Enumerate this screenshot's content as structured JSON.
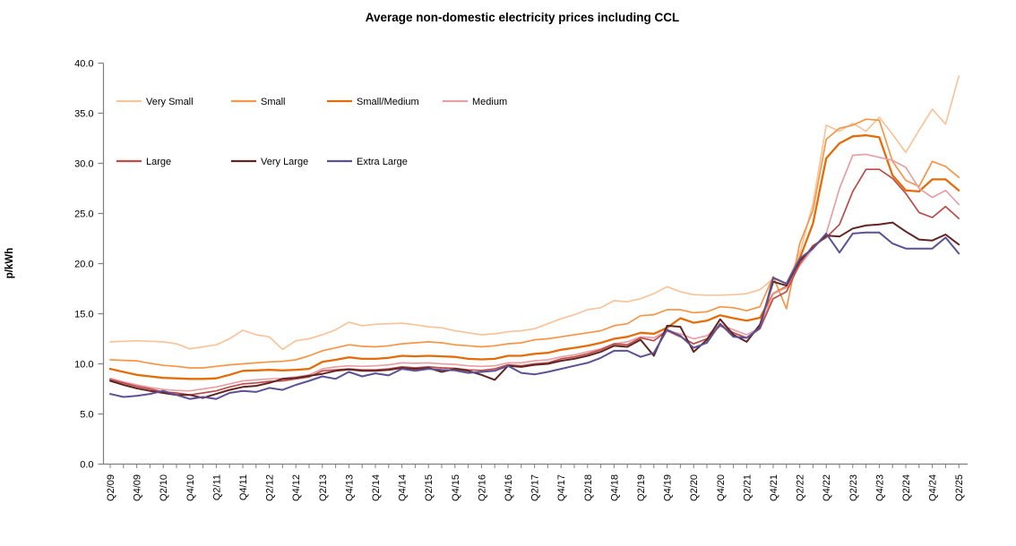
{
  "chart": {
    "title": "Average non-domestic electricity prices including CCL",
    "ylabel": "p/kWh"
  },
  "chart_data": {
    "type": "line",
    "title": "Average non-domestic electricity prices including CCL",
    "xlabel": "",
    "ylabel": "p/kWh",
    "ylim": [
      0,
      40
    ],
    "ytick_step": 5,
    "ytick_format_decimals": 1,
    "x_label_every": 2,
    "grid": false,
    "legend_position": "inside-top-left",
    "legend_rows": [
      [
        "Very Small",
        "Small",
        "Small/Medium",
        "Medium"
      ],
      [
        "Large",
        "Very Large",
        "Extra Large"
      ]
    ],
    "categories": [
      "Q2/09",
      "Q3/09",
      "Q4/09",
      "Q1/10",
      "Q2/10",
      "Q3/10",
      "Q4/10",
      "Q1/11",
      "Q2/11",
      "Q3/11",
      "Q4/11",
      "Q1/12",
      "Q2/12",
      "Q3/12",
      "Q4/12",
      "Q1/13",
      "Q2/13",
      "Q3/13",
      "Q4/13",
      "Q1/14",
      "Q2/14",
      "Q3/14",
      "Q4/14",
      "Q1/15",
      "Q2/15",
      "Q3/15",
      "Q4/15",
      "Q1/16",
      "Q2/16",
      "Q3/16",
      "Q4/16",
      "Q1/17",
      "Q2/17",
      "Q3/17",
      "Q4/17",
      "Q1/18",
      "Q2/18",
      "Q3/18",
      "Q4/18",
      "Q1/19",
      "Q2/19",
      "Q3/19",
      "Q4/19",
      "Q1/20",
      "Q2/20",
      "Q3/20",
      "Q4/20",
      "Q1/21",
      "Q2/21",
      "Q3/21",
      "Q4/21",
      "Q1/22",
      "Q2/22",
      "Q3/22",
      "Q4/22",
      "Q1/23",
      "Q2/23",
      "Q3/23",
      "Q4/23",
      "Q1/24",
      "Q2/24",
      "Q3/24",
      "Q4/24",
      "Q1/25",
      "Q2/25"
    ],
    "series": [
      {
        "name": "Very Small",
        "color": "#F9C499",
        "stroke_width": 1.7,
        "values": [
          12.2,
          12.25,
          12.3,
          12.25,
          12.2,
          12.0,
          11.5,
          11.7,
          11.9,
          12.5,
          13.35,
          12.9,
          12.7,
          11.45,
          12.3,
          12.5,
          12.9,
          13.4,
          14.15,
          13.8,
          13.95,
          14.0,
          14.05,
          13.9,
          13.7,
          13.6,
          13.3,
          13.1,
          12.9,
          13.0,
          13.2,
          13.3,
          13.5,
          14.0,
          14.5,
          14.9,
          15.4,
          15.6,
          16.3,
          16.2,
          16.5,
          17.0,
          17.7,
          17.2,
          16.9,
          16.85,
          16.85,
          16.9,
          17.0,
          17.4,
          18.5,
          18.0,
          21.0,
          26.0,
          33.8,
          33.2,
          34.0,
          33.2,
          34.6,
          32.9,
          31.1,
          33.3,
          35.4,
          33.9,
          38.7
        ]
      },
      {
        "name": "Small",
        "color": "#F79646",
        "stroke_width": 1.7,
        "values": [
          10.4,
          10.35,
          10.3,
          10.05,
          9.85,
          9.75,
          9.6,
          9.6,
          9.75,
          9.9,
          10.0,
          10.1,
          10.2,
          10.25,
          10.4,
          10.8,
          11.3,
          11.6,
          11.9,
          11.75,
          11.7,
          11.8,
          12.0,
          12.1,
          12.2,
          12.1,
          11.9,
          11.8,
          11.7,
          11.8,
          12.0,
          12.1,
          12.4,
          12.5,
          12.7,
          12.9,
          13.1,
          13.3,
          13.8,
          14.0,
          14.8,
          14.9,
          15.4,
          15.4,
          15.1,
          15.2,
          15.7,
          15.6,
          15.3,
          15.7,
          18.7,
          15.5,
          22.0,
          25.3,
          32.4,
          33.5,
          33.8,
          34.4,
          34.3,
          30.2,
          28.3,
          27.7,
          30.2,
          29.7,
          28.6
        ]
      },
      {
        "name": "Small/Medium",
        "color": "#E46C0A",
        "stroke_width": 2.3,
        "values": [
          9.5,
          9.2,
          8.9,
          8.75,
          8.6,
          8.55,
          8.5,
          8.5,
          8.55,
          8.9,
          9.3,
          9.35,
          9.4,
          9.35,
          9.4,
          9.5,
          10.2,
          10.4,
          10.65,
          10.5,
          10.5,
          10.6,
          10.8,
          10.75,
          10.8,
          10.75,
          10.7,
          10.5,
          10.45,
          10.5,
          10.8,
          10.8,
          11.0,
          11.1,
          11.4,
          11.6,
          11.8,
          12.1,
          12.5,
          12.7,
          13.1,
          13.0,
          13.6,
          14.55,
          14.1,
          14.3,
          14.85,
          14.55,
          14.3,
          14.6,
          17.0,
          17.7,
          20.5,
          24.0,
          30.5,
          32.0,
          32.7,
          32.8,
          32.6,
          28.8,
          27.3,
          27.2,
          28.4,
          28.4,
          27.3
        ]
      },
      {
        "name": "Medium",
        "color": "#E6A0A6",
        "stroke_width": 1.7,
        "values": [
          8.55,
          8.2,
          7.9,
          7.65,
          7.45,
          7.35,
          7.3,
          7.5,
          7.7,
          8.0,
          8.3,
          8.4,
          8.5,
          8.55,
          8.7,
          8.9,
          9.5,
          9.7,
          9.8,
          9.75,
          9.8,
          9.9,
          10.1,
          10.05,
          10.1,
          10.0,
          9.95,
          9.8,
          9.75,
          9.8,
          10.1,
          10.1,
          10.3,
          10.4,
          10.7,
          10.9,
          11.2,
          11.5,
          12.0,
          12.2,
          12.7,
          12.6,
          13.3,
          13.0,
          12.5,
          12.8,
          13.9,
          13.4,
          12.9,
          13.6,
          17.0,
          17.6,
          19.8,
          21.5,
          23.0,
          27.5,
          30.8,
          30.9,
          30.6,
          30.3,
          29.6,
          27.5,
          26.6,
          27.3,
          25.9
        ]
      },
      {
        "name": "Large",
        "color": "#BE4B48",
        "stroke_width": 1.7,
        "values": [
          8.45,
          8.1,
          7.75,
          7.5,
          7.2,
          7.1,
          6.9,
          7.1,
          7.3,
          7.7,
          8.0,
          8.1,
          8.25,
          8.3,
          8.5,
          8.7,
          9.3,
          9.4,
          9.5,
          9.4,
          9.4,
          9.5,
          9.7,
          9.6,
          9.7,
          9.6,
          9.55,
          9.4,
          9.35,
          9.5,
          9.9,
          9.8,
          10.0,
          10.1,
          10.5,
          10.7,
          11.0,
          11.4,
          12.0,
          11.9,
          12.6,
          12.3,
          13.3,
          12.7,
          12.0,
          12.5,
          13.8,
          13.1,
          12.6,
          13.5,
          16.5,
          17.2,
          20.0,
          21.8,
          22.6,
          23.9,
          27.2,
          29.4,
          29.4,
          28.5,
          27.0,
          25.1,
          24.6,
          25.7,
          24.5
        ]
      },
      {
        "name": "Very Large",
        "color": "#622423",
        "stroke_width": 2.0,
        "values": [
          8.3,
          7.9,
          7.55,
          7.3,
          7.1,
          6.9,
          6.9,
          6.6,
          7.0,
          7.4,
          7.7,
          7.8,
          8.1,
          8.5,
          8.6,
          8.8,
          9.0,
          9.3,
          9.45,
          9.3,
          9.3,
          9.4,
          9.6,
          9.5,
          9.6,
          9.2,
          9.5,
          9.3,
          8.9,
          8.4,
          9.8,
          9.7,
          9.9,
          10.0,
          10.3,
          10.5,
          10.8,
          11.2,
          11.8,
          11.7,
          12.4,
          10.8,
          13.8,
          13.7,
          11.2,
          12.4,
          14.45,
          12.9,
          12.2,
          13.9,
          18.2,
          17.8,
          20.3,
          21.6,
          22.8,
          22.7,
          23.5,
          23.8,
          23.9,
          24.1,
          23.2,
          22.4,
          22.3,
          22.9,
          21.9
        ]
      },
      {
        "name": "Extra Large",
        "color": "#5C5195",
        "stroke_width": 2.0,
        "values": [
          7.0,
          6.7,
          6.8,
          7.0,
          7.3,
          6.9,
          6.5,
          6.7,
          6.5,
          7.1,
          7.3,
          7.2,
          7.6,
          7.4,
          7.9,
          8.3,
          8.75,
          8.5,
          9.2,
          8.75,
          9.05,
          8.85,
          9.5,
          9.3,
          9.5,
          9.4,
          9.35,
          9.1,
          9.2,
          9.3,
          9.8,
          9.1,
          8.95,
          9.2,
          9.5,
          9.8,
          10.1,
          10.6,
          11.3,
          11.3,
          10.7,
          11.1,
          13.4,
          12.8,
          11.6,
          12.1,
          14.0,
          12.7,
          12.6,
          13.6,
          18.6,
          18.0,
          20.5,
          21.5,
          23.0,
          21.1,
          23.0,
          23.1,
          23.1,
          22.0,
          21.5,
          21.5,
          21.5,
          22.6,
          21.0
        ]
      }
    ],
    "axis_color": "#7F7F7F"
  }
}
